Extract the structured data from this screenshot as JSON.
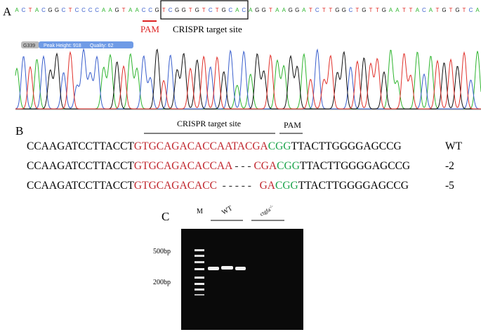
{
  "panel_a": {
    "label": "A",
    "bases": "ACTACGGCTCCCCAAGTAACCGTCGGTGTCTGCACAGGTAAGGATCTTGGCTGTTGAATTACATGTGTCA",
    "pam": "PAM",
    "target_label": "CRISPR target site",
    "trace_info": {
      "position": "G339",
      "peak_height": "Peak Height: 918",
      "quality": "Quality: 62"
    },
    "base_colors": {
      "A": "#2fb52f",
      "C": "#3a5fcd",
      "G": "#111111",
      "T": "#e0302a"
    }
  },
  "panel_b": {
    "label": "B",
    "target_label": "CRISPR  target site",
    "pam": "PAM",
    "rows": [
      {
        "segments": [
          {
            "text": "CCAAGATCCTTACCT",
            "color": "#000000"
          },
          {
            "text": "GTGCAGACACCAATACGA",
            "color": "#c0262d"
          },
          {
            "text": "CGG",
            "color": "#1aa34a"
          },
          {
            "text": "TTACTTGGGGAGCCG",
            "color": "#000000"
          }
        ],
        "genotype": "WT"
      },
      {
        "segments": [
          {
            "text": "CCAAGATCCTTACCT",
            "color": "#000000"
          },
          {
            "text": "GTGCAGACACCAA",
            "color": "#c0262d"
          },
          {
            "text": " - - - ",
            "color": "#333333"
          },
          {
            "text": "CGA",
            "color": "#c0262d"
          },
          {
            "text": "CGG",
            "color": "#1aa34a"
          },
          {
            "text": "TTACTTGGGGAGCCG",
            "color": "#000000"
          }
        ],
        "genotype": "-2"
      },
      {
        "segments": [
          {
            "text": "CCAAGATCCTTACCT",
            "color": "#000000"
          },
          {
            "text": "GTGCAGACACC",
            "color": "#c0262d"
          },
          {
            "text": "  - - - - -   ",
            "color": "#333333"
          },
          {
            "text": "GA",
            "color": "#c0262d"
          },
          {
            "text": "CGG",
            "color": "#1aa34a"
          },
          {
            "text": "TTACTTGGGGAGCCG",
            "color": "#000000"
          }
        ],
        "genotype": "-5"
      }
    ]
  },
  "panel_c": {
    "label": "C",
    "marker": "M",
    "lanes": [
      {
        "label": "WT"
      },
      {
        "label": "ctgfa",
        "superscript": "-/-"
      }
    ],
    "sizes": [
      "500bp",
      "200bp"
    ]
  }
}
